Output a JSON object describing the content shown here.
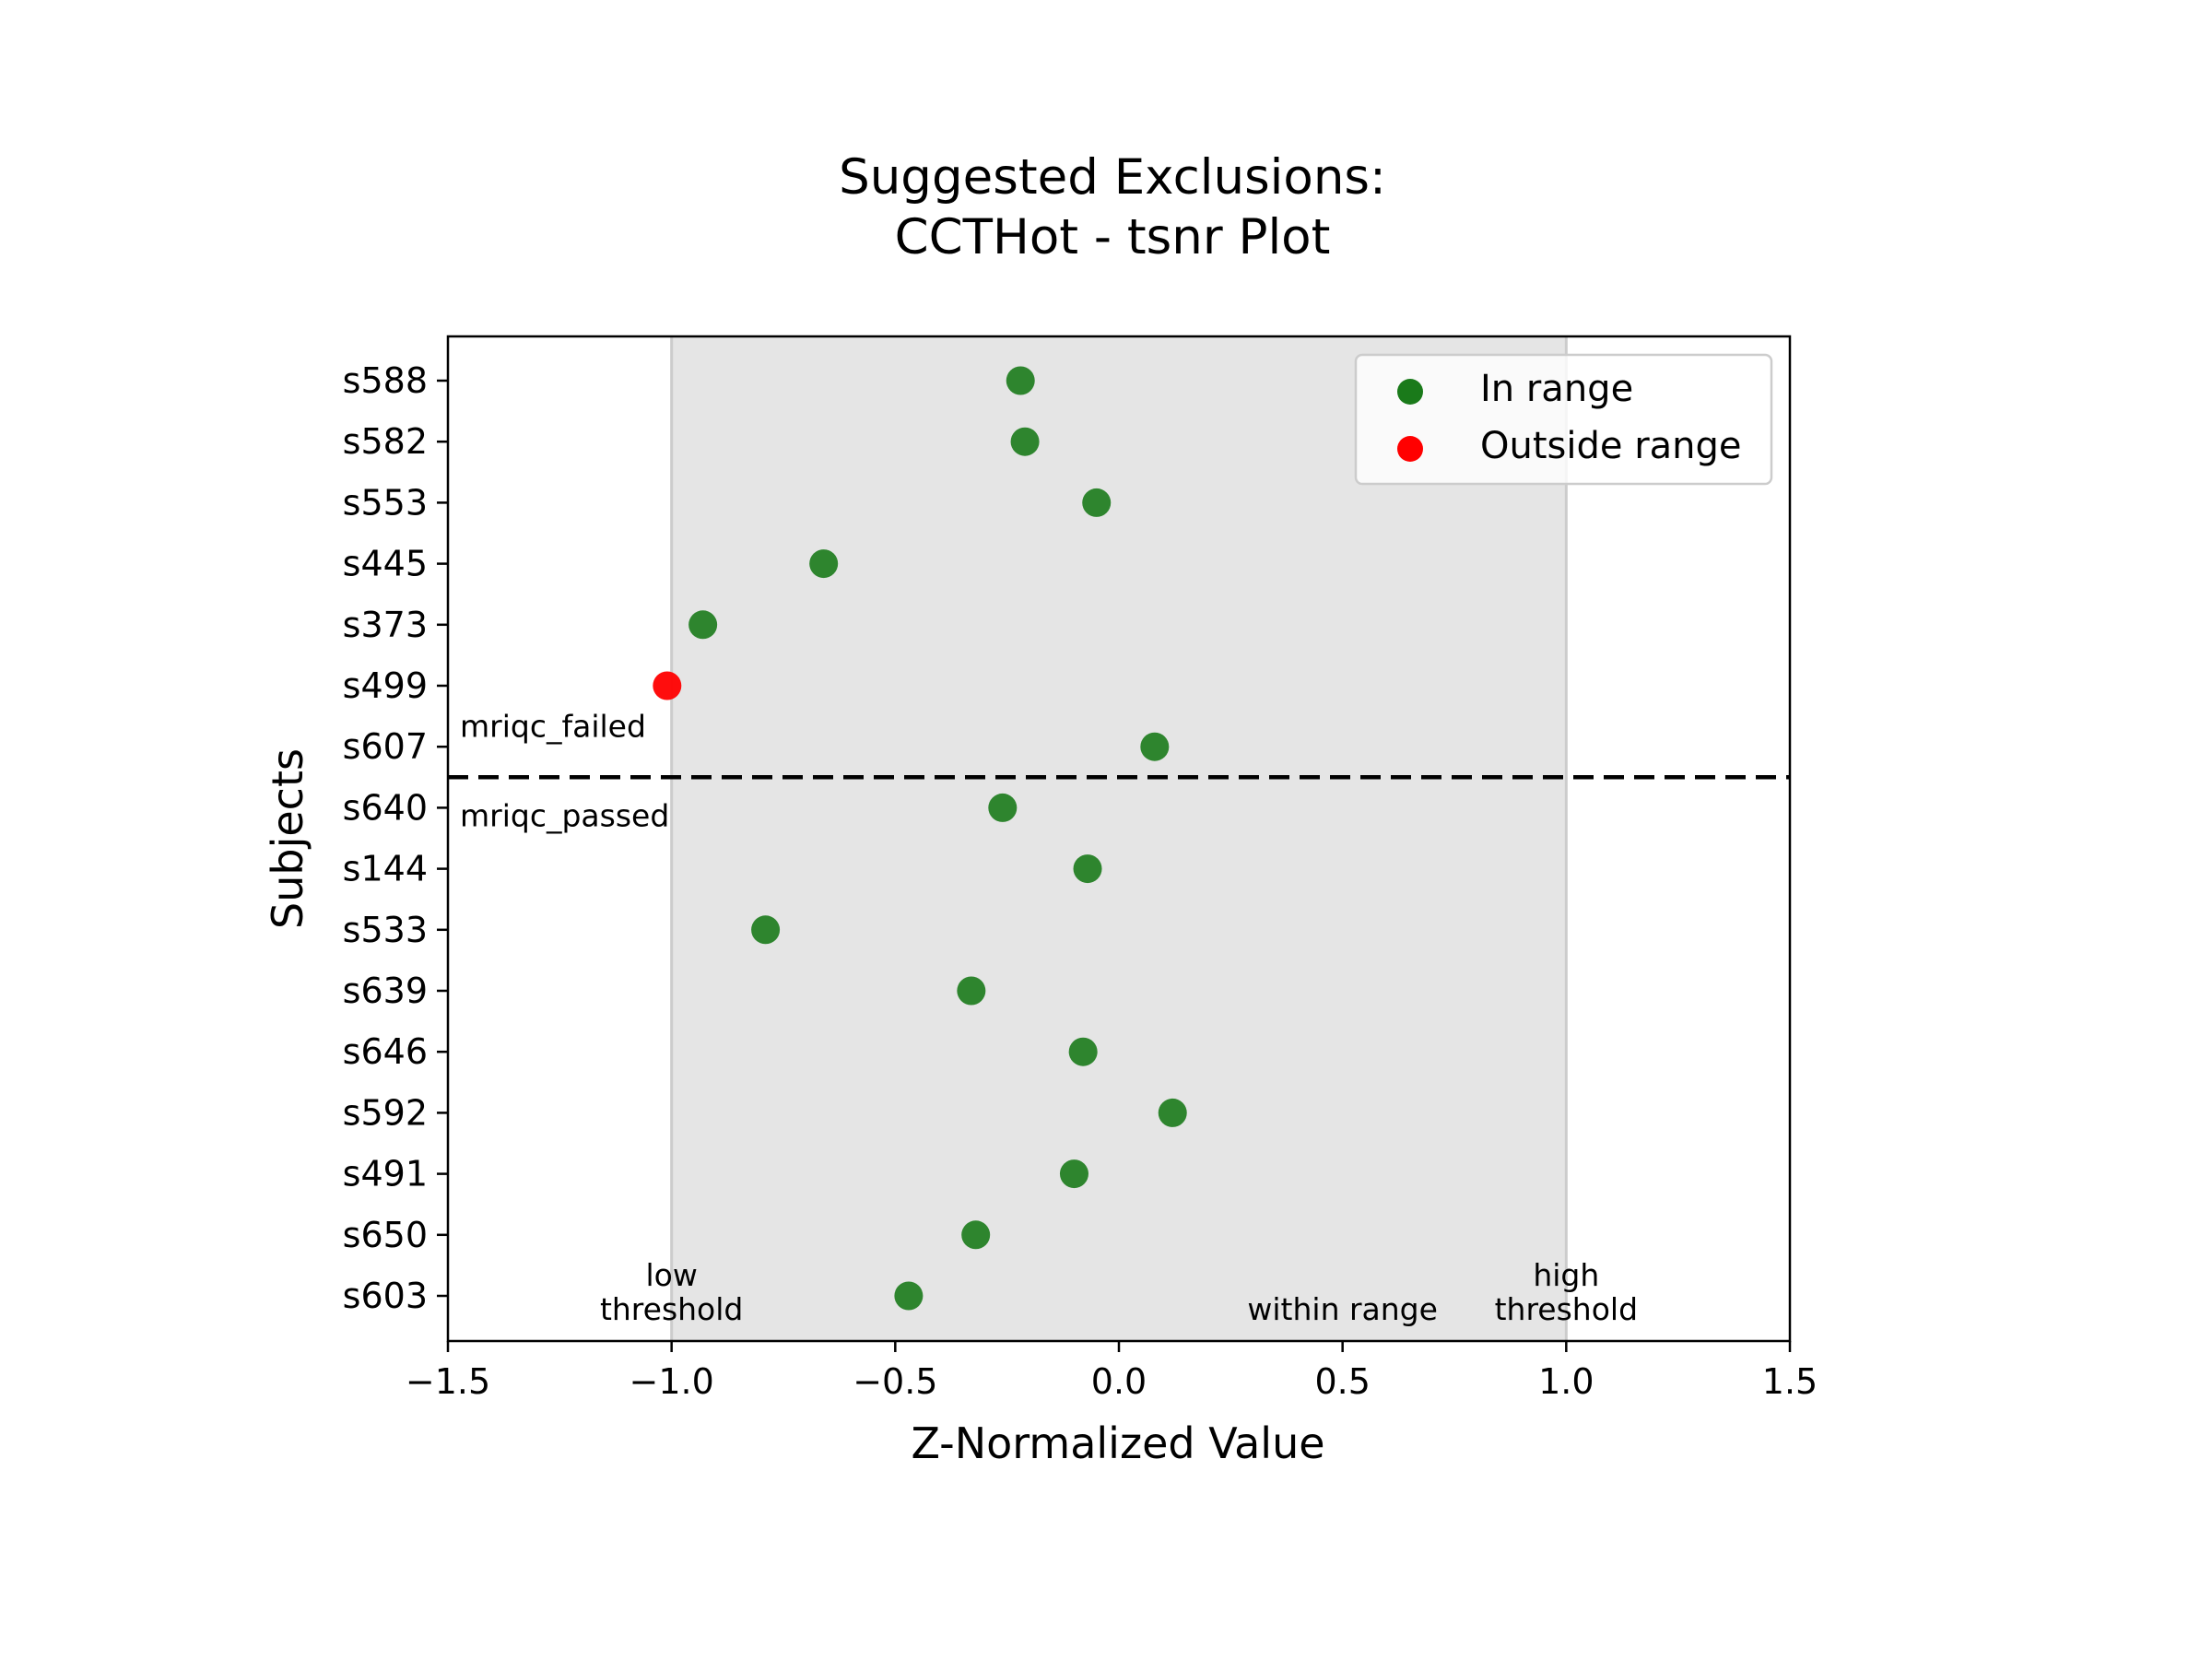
{
  "chart_data": {
    "type": "scatter",
    "title_line1": "Suggested Exclusions:",
    "title_line2": "CCTHot - tsnr Plot",
    "xlabel": "Z-Normalized Value",
    "ylabel": "Subjects",
    "xlim": [
      -1.5,
      1.5
    ],
    "xticks": [
      -1.5,
      -1.0,
      -0.5,
      0.0,
      0.5,
      1.0,
      1.5
    ],
    "xtick_labels": [
      "−1.5",
      "−1.0",
      "−0.5",
      "0.0",
      "0.5",
      "1.0",
      "1.5"
    ],
    "low_threshold": -1.0,
    "high_threshold": 1.0,
    "annotations": {
      "low_line1": "low",
      "low_line2": "threshold",
      "high_line1": "high",
      "high_line2": "threshold",
      "within": "within range",
      "group_failed": "mriqc_failed",
      "group_passed": "mriqc_passed"
    },
    "legend": [
      {
        "label": "In range",
        "color": "#1a7a1a"
      },
      {
        "label": "Outside range",
        "color": "#ff0000"
      }
    ],
    "colors": {
      "in_range": "#1a7a1a",
      "outside_range": "#ff0000",
      "band": "#e5e5e5"
    },
    "separator_after_index": 6,
    "subjects": [
      "s588",
      "s582",
      "s553",
      "s445",
      "s373",
      "s499",
      "s607",
      "s640",
      "s144",
      "s533",
      "s639",
      "s646",
      "s592",
      "s491",
      "s650",
      "s603"
    ],
    "values": [
      -0.22,
      -0.21,
      -0.05,
      -0.66,
      -0.93,
      -1.01,
      0.08,
      -0.26,
      -0.07,
      -0.79,
      -0.33,
      -0.08,
      0.12,
      -0.1,
      -0.32,
      -0.47
    ],
    "status": [
      "in",
      "in",
      "in",
      "in",
      "in",
      "out",
      "in",
      "in",
      "in",
      "in",
      "in",
      "in",
      "in",
      "in",
      "in",
      "in"
    ]
  }
}
